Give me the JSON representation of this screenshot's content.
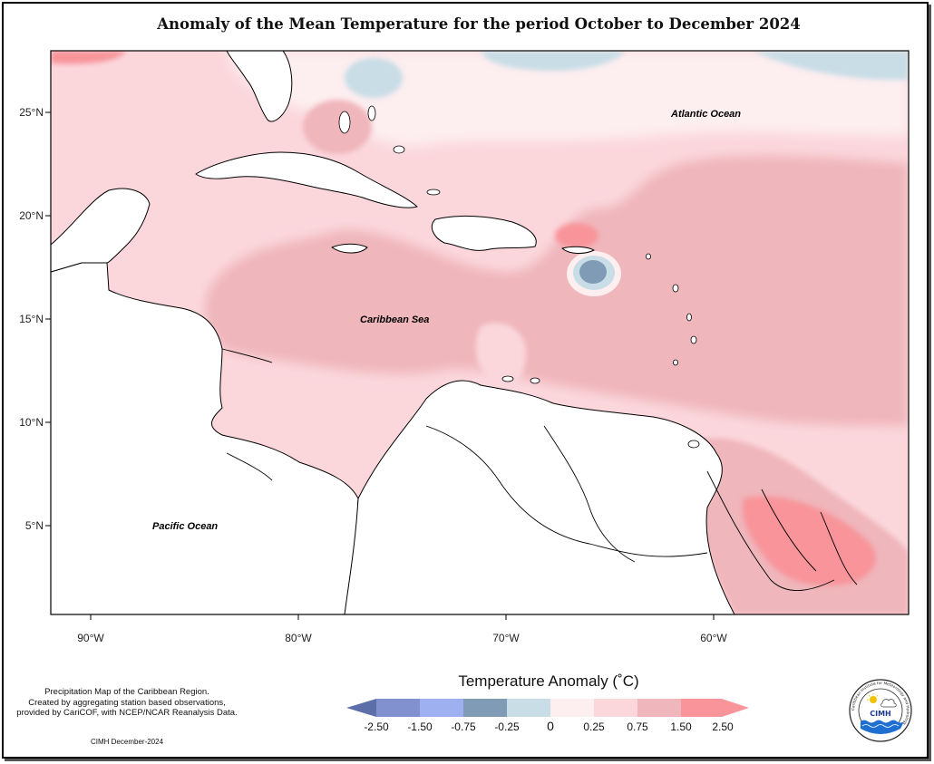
{
  "title": "Anomaly of the Mean Temperature for the period October to December 2024",
  "ocean_labels": {
    "atlantic": "Atlantic Ocean",
    "caribbean": "Caribbean Sea",
    "pacific": "Pacific Ocean"
  },
  "lat_labels": [
    "25°N",
    "20°N",
    "15°N",
    "10°N",
    "5°N"
  ],
  "lon_labels": [
    "90°W",
    "80°W",
    "70°W",
    "60°W"
  ],
  "credit": {
    "line1": "Precipitation Map of the Caribbean Region.",
    "line2": "Created by aggregating station based observations,",
    "line3": "provided by CariCOF, with NCEP/NCAR Reanalysis Data.",
    "date": "CIMH December-2024"
  },
  "legend": {
    "title": "Temperature Anomaly (˚C)",
    "ticks": [
      "-2.50",
      "-1.50",
      "-0.75",
      "-0.25",
      "0",
      "0.25",
      "0.75",
      "1.50",
      "2.50"
    ],
    "colors": [
      "#5c6fa8",
      "#8191cf",
      "#9fb0f0",
      "#7f9bb5",
      "#c8dde6",
      "#fdeef0",
      "#fbd7dc",
      "#efb6bb",
      "#f8949a"
    ]
  },
  "logo": {
    "text": "CIMH",
    "ring_text": "Caribbean Institute for Meteorology and Hydrology"
  }
}
